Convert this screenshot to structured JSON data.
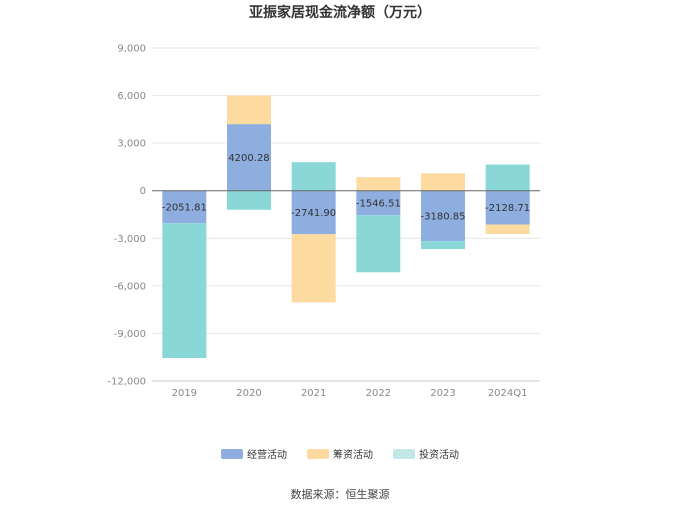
{
  "chart_data": {
    "type": "bar",
    "stacked": true,
    "title": "亚振家居现金流净额（万元）",
    "categories": [
      "2019",
      "2020",
      "2021",
      "2022",
      "2023",
      "2024Q1"
    ],
    "series": [
      {
        "name": "经营活动",
        "color": "#8eaee0",
        "values": [
          -2051.81,
          4200.28,
          -2741.9,
          -1546.51,
          -3180.85,
          -2128.71
        ]
      },
      {
        "name": "筹资活动",
        "color": "#fddaa0",
        "values": [
          0,
          1800,
          -4300,
          850,
          1100,
          -600
        ]
      },
      {
        "name": "投资活动",
        "color": "#8ad7d7",
        "values": [
          -8500,
          -1200,
          1800,
          -3600,
          -500,
          1650
        ]
      }
    ],
    "data_labels": [
      "-2051.81",
      "4200.28",
      "-2741.90",
      "-1546.51",
      "-3180.85",
      "-2128.71"
    ],
    "ylim": [
      -12000,
      9000
    ],
    "yticks": [
      "9,000",
      "6,000",
      "3,000",
      "0",
      "-3,000",
      "-6,000",
      "-9,000",
      "-12,000"
    ],
    "grid": true,
    "legend_position": "bottom"
  },
  "legend": [
    {
      "label": "经营活动",
      "color": "#8eaee0"
    },
    {
      "label": "筹资活动",
      "color": "#fddaa0"
    },
    {
      "label": "投资活动",
      "color": "#c4e8ea"
    }
  ],
  "source": "数据来源：恒生聚源"
}
